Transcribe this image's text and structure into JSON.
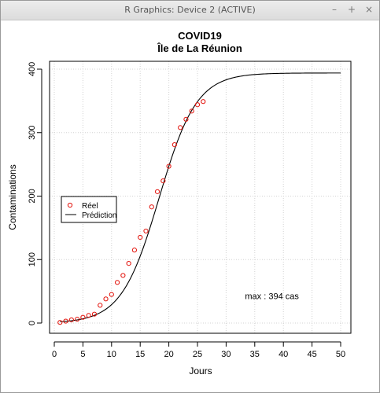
{
  "window": {
    "title": "R Graphics: Device 2 (ACTIVE)",
    "buttons": {
      "minimize": "–",
      "maximize": "+",
      "close": "×"
    }
  },
  "chart_data": {
    "type": "scatter",
    "title": "COVID19",
    "subtitle": "Île de La Réunion",
    "xlabel": "Jours",
    "ylabel": "Contaminations",
    "xlim": [
      0,
      50
    ],
    "ylim": [
      0,
      400
    ],
    "xticks": [
      0,
      5,
      10,
      15,
      20,
      25,
      30,
      35,
      40,
      45,
      50
    ],
    "yticks": [
      0,
      100,
      200,
      300,
      400
    ],
    "grid": true,
    "legend": {
      "position": "left",
      "entries": [
        {
          "label": "Réel",
          "kind": "points",
          "color": "#e3120b"
        },
        {
          "label": "Prédiction",
          "kind": "line",
          "color": "#000000"
        }
      ]
    },
    "annotation": "max : 394 cas",
    "annotation_at": {
      "x": 38,
      "y": 38
    },
    "series": [
      {
        "name": "Réel",
        "kind": "points",
        "color": "#e3120b",
        "x": [
          1,
          2,
          3,
          4,
          5,
          6,
          7,
          8,
          9,
          10,
          11,
          12,
          13,
          14,
          15,
          16,
          17,
          18,
          19,
          20,
          21,
          22,
          23,
          24,
          25,
          26
        ],
        "y": [
          1,
          3,
          5,
          6,
          9,
          12,
          14,
          28,
          38,
          45,
          64,
          75,
          94,
          115,
          135,
          145,
          183,
          207,
          224,
          247,
          281,
          308,
          321,
          334,
          344,
          349
        ]
      },
      {
        "name": "Prédiction",
        "kind": "line",
        "color": "#000000",
        "model": {
          "type": "logistic",
          "max": 394,
          "rate": 0.305,
          "midpoint": 18.3
        },
        "x_range": [
          1,
          50
        ]
      }
    ]
  }
}
